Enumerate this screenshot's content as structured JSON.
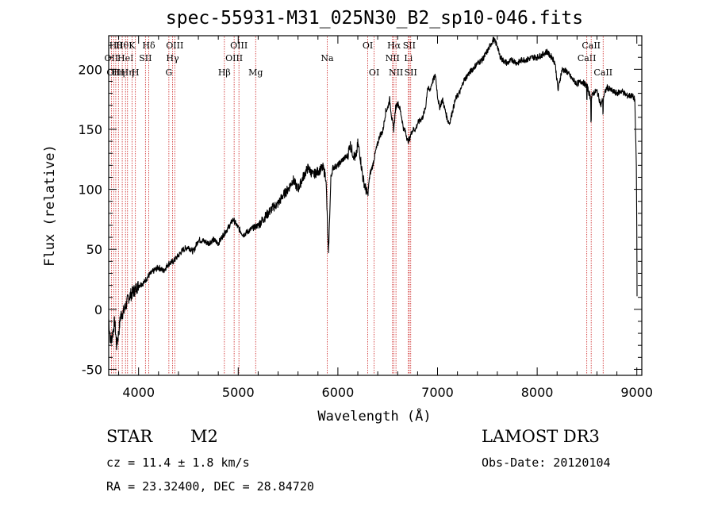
{
  "chart_data": {
    "type": "line",
    "title": "spec-55931-M31_025N30_B2_sp10-046.fits",
    "xlabel": "Wavelength (Å)",
    "ylabel": "Flux (relative)",
    "xlim": [
      3700,
      9050
    ],
    "ylim": [
      -55,
      228
    ],
    "xticks": [
      4000,
      5000,
      6000,
      7000,
      8000,
      9000
    ],
    "xtick_labels": [
      "4000",
      "5000",
      "6000",
      "7000",
      "8000",
      "9000"
    ],
    "yticks": [
      -50,
      0,
      50,
      100,
      150,
      200
    ],
    "ytick_labels": [
      "-50",
      "0",
      "50",
      "100",
      "150",
      "200"
    ],
    "spectrum_anchors": [
      [
        3700,
        -8
      ],
      [
        3720,
        -28
      ],
      [
        3740,
        -20
      ],
      [
        3760,
        -10
      ],
      [
        3780,
        -30
      ],
      [
        3800,
        -20
      ],
      [
        3820,
        -5
      ],
      [
        3850,
        -2
      ],
      [
        3880,
        5
      ],
      [
        3900,
        10
      ],
      [
        3950,
        15
      ],
      [
        4000,
        20
      ],
      [
        4050,
        22
      ],
      [
        4100,
        28
      ],
      [
        4150,
        32
      ],
      [
        4200,
        35
      ],
      [
        4250,
        32
      ],
      [
        4300,
        38
      ],
      [
        4350,
        40
      ],
      [
        4400,
        45
      ],
      [
        4450,
        50
      ],
      [
        4500,
        52
      ],
      [
        4550,
        48
      ],
      [
        4600,
        58
      ],
      [
        4650,
        57
      ],
      [
        4700,
        55
      ],
      [
        4750,
        58
      ],
      [
        4800,
        55
      ],
      [
        4850,
        62
      ],
      [
        4900,
        68
      ],
      [
        4950,
        75
      ],
      [
        5000,
        68
      ],
      [
        5050,
        62
      ],
      [
        5100,
        65
      ],
      [
        5150,
        68
      ],
      [
        5200,
        70
      ],
      [
        5250,
        75
      ],
      [
        5300,
        80
      ],
      [
        5350,
        85
      ],
      [
        5400,
        88
      ],
      [
        5450,
        95
      ],
      [
        5500,
        100
      ],
      [
        5550,
        108
      ],
      [
        5600,
        100
      ],
      [
        5650,
        110
      ],
      [
        5700,
        118
      ],
      [
        5750,
        112
      ],
      [
        5800,
        115
      ],
      [
        5850,
        118
      ],
      [
        5880,
        110
      ],
      [
        5895,
        72
      ],
      [
        5905,
        45
      ],
      [
        5915,
        70
      ],
      [
        5930,
        110
      ],
      [
        5950,
        118
      ],
      [
        6000,
        120
      ],
      [
        6050,
        125
      ],
      [
        6100,
        128
      ],
      [
        6120,
        138
      ],
      [
        6150,
        130
      ],
      [
        6180,
        125
      ],
      [
        6200,
        138
      ],
      [
        6220,
        130
      ],
      [
        6250,
        110
      ],
      [
        6280,
        100
      ],
      [
        6300,
        95
      ],
      [
        6320,
        112
      ],
      [
        6350,
        120
      ],
      [
        6380,
        132
      ],
      [
        6400,
        138
      ],
      [
        6420,
        145
      ],
      [
        6450,
        148
      ],
      [
        6480,
        165
      ],
      [
        6500,
        168
      ],
      [
        6520,
        175
      ],
      [
        6540,
        160
      ],
      [
        6560,
        150
      ],
      [
        6580,
        168
      ],
      [
        6600,
        172
      ],
      [
        6620,
        168
      ],
      [
        6640,
        160
      ],
      [
        6660,
        150
      ],
      [
        6680,
        148
      ],
      [
        6700,
        140
      ],
      [
        6720,
        142
      ],
      [
        6740,
        148
      ],
      [
        6760,
        150
      ],
      [
        6780,
        150
      ],
      [
        6800,
        155
      ],
      [
        6850,
        160
      ],
      [
        6880,
        168
      ],
      [
        6900,
        185
      ],
      [
        6920,
        182
      ],
      [
        6950,
        190
      ],
      [
        6980,
        195
      ],
      [
        7000,
        178
      ],
      [
        7020,
        168
      ],
      [
        7050,
        175
      ],
      [
        7070,
        168
      ],
      [
        7100,
        158
      ],
      [
        7120,
        155
      ],
      [
        7150,
        165
      ],
      [
        7180,
        175
      ],
      [
        7200,
        178
      ],
      [
        7230,
        182
      ],
      [
        7260,
        190
      ],
      [
        7300,
        195
      ],
      [
        7350,
        200
      ],
      [
        7400,
        205
      ],
      [
        7450,
        208
      ],
      [
        7500,
        215
      ],
      [
        7530,
        220
      ],
      [
        7560,
        225
      ],
      [
        7600,
        220
      ],
      [
        7620,
        212
      ],
      [
        7650,
        208
      ],
      [
        7700,
        205
      ],
      [
        7750,
        208
      ],
      [
        7800,
        205
      ],
      [
        7850,
        208
      ],
      [
        7900,
        208
      ],
      [
        7950,
        210
      ],
      [
        8000,
        210
      ],
      [
        8050,
        212
      ],
      [
        8100,
        215
      ],
      [
        8120,
        212
      ],
      [
        8150,
        210
      ],
      [
        8180,
        205
      ],
      [
        8200,
        190
      ],
      [
        8210,
        182
      ],
      [
        8220,
        188
      ],
      [
        8250,
        200
      ],
      [
        8300,
        198
      ],
      [
        8350,
        192
      ],
      [
        8400,
        188
      ],
      [
        8450,
        190
      ],
      [
        8500,
        186
      ],
      [
        8540,
        175
      ],
      [
        8560,
        180
      ],
      [
        8600,
        182
      ],
      [
        8640,
        170
      ],
      [
        8660,
        176
      ],
      [
        8700,
        185
      ],
      [
        8750,
        182
      ],
      [
        8800,
        180
      ],
      [
        8850,
        182
      ],
      [
        8900,
        178
      ],
      [
        8950,
        178
      ],
      [
        8980,
        175
      ],
      [
        8995,
        120
      ],
      [
        9000,
        65
      ],
      [
        9003,
        0
      ]
    ],
    "sharp_features": [
      [
        8499,
        175
      ],
      [
        8542,
        158
      ],
      [
        8662,
        163
      ]
    ],
    "emission_lines": [
      {
        "wavelength": 3727,
        "label": "OII",
        "row": 2
      },
      {
        "wavelength": 3750,
        "label": "OII",
        "row": 3
      },
      {
        "wavelength": 3771,
        "label": "Hθ",
        "row": 1
      },
      {
        "wavelength": 3798,
        "label": "Hη",
        "row": 3
      },
      {
        "wavelength": 3836,
        "label": "Hθ",
        "row": 1
      },
      {
        "wavelength": 3869,
        "label": "HeI",
        "row": 2
      },
      {
        "wavelength": 3889,
        "label": "Hη",
        "row": 3
      },
      {
        "wavelength": 3934,
        "label": "K",
        "row": 1
      },
      {
        "wavelength": 3968,
        "label": "H",
        "row": 3
      },
      {
        "wavelength": 4069,
        "label": "SII",
        "row": 2
      },
      {
        "wavelength": 4102,
        "label": "Hδ",
        "row": 1
      },
      {
        "wavelength": 4304,
        "label": "G",
        "row": 3
      },
      {
        "wavelength": 4341,
        "label": "Hγ",
        "row": 2
      },
      {
        "wavelength": 4363,
        "label": "OIII",
        "row": 1
      },
      {
        "wavelength": 4861,
        "label": "Hβ",
        "row": 3
      },
      {
        "wavelength": 4959,
        "label": "OIII",
        "row": 2
      },
      {
        "wavelength": 5007,
        "label": "OIII",
        "row": 1
      },
      {
        "wavelength": 5175,
        "label": "Mg",
        "row": 3
      },
      {
        "wavelength": 5893,
        "label": "Na",
        "row": 2
      },
      {
        "wavelength": 6300,
        "label": "OI",
        "row": 1
      },
      {
        "wavelength": 6364,
        "label": "OI",
        "row": 3
      },
      {
        "wavelength": 6548,
        "label": "NII",
        "row": 2
      },
      {
        "wavelength": 6563,
        "label": "Hα",
        "row": 1
      },
      {
        "wavelength": 6583,
        "label": "NII",
        "row": 3
      },
      {
        "wavelength": 6708,
        "label": "Li",
        "row": 2
      },
      {
        "wavelength": 6716,
        "label": "SII",
        "row": 1
      },
      {
        "wavelength": 6731,
        "label": "SII",
        "row": 3
      },
      {
        "wavelength": 8498,
        "label": "CaII",
        "row": 2
      },
      {
        "wavelength": 8542,
        "label": "CaII",
        "row": 1
      },
      {
        "wavelength": 8662,
        "label": "CaII",
        "row": 3
      }
    ]
  },
  "info": {
    "object_class": "STAR",
    "subclass": "M2",
    "survey": "LAMOST DR3",
    "redshift": "cz = 11.4 ± 1.8 km/s",
    "obs_date": "Obs-Date: 20120104",
    "coords": "RA =  23.32400, DEC =  28.84720"
  }
}
